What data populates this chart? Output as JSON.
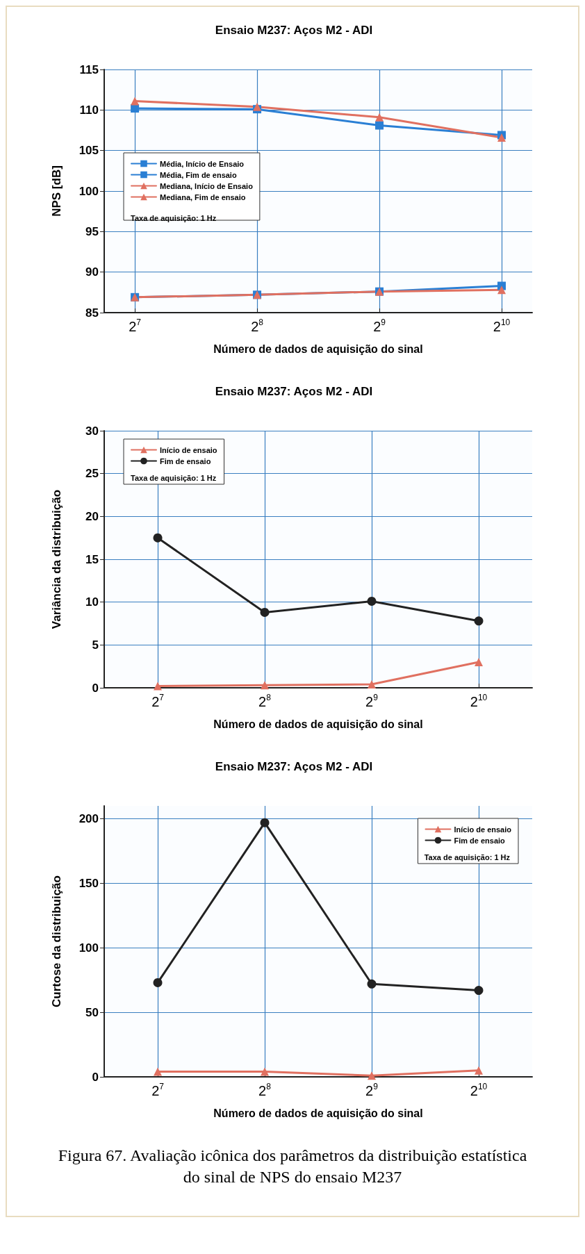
{
  "chart_data": [
    {
      "type": "line",
      "title": "Ensaio M237: Aços M2 - ADI",
      "xlabel": "Número de dados de aquisição do sinal",
      "ylabel": "NPS [dB]",
      "log": "x",
      "x": [
        128,
        256,
        512,
        1024
      ],
      "xlim": [
        107.6,
        1217.7
      ],
      "xticks": [
        {
          "value": 128,
          "label": "2$^{7}$"
        },
        {
          "value": 256,
          "label": "2$^{8}$"
        },
        {
          "value": 512,
          "label": "2$^{9}$"
        },
        {
          "value": 1024,
          "label": "2$^{10}$"
        }
      ],
      "ylim": [
        85,
        115
      ],
      "yticks": [
        85,
        90,
        95,
        100,
        105,
        110,
        115
      ],
      "grid": true,
      "legend": "left",
      "annotations": [
        "Taxa de aquisição: 1 Hz"
      ],
      "series": [
        {
          "name": "Média, Início de Ensaio",
          "color": "#2a7fd4",
          "marker": "square",
          "values": [
            86.9,
            87.2,
            87.6,
            88.3
          ]
        },
        {
          "name": "Média, Fim de ensaio",
          "color": "#2a7fd4",
          "marker": "square",
          "values": [
            110.2,
            110.1,
            108.1,
            106.9
          ]
        },
        {
          "name": "Mediana, Início de Ensaio",
          "color": "#e07060",
          "marker": "triangle",
          "values": [
            86.9,
            87.2,
            87.6,
            87.8
          ]
        },
        {
          "name": "Mediana, Fim de ensaio",
          "color": "#e07060",
          "marker": "triangle",
          "values": [
            111.1,
            110.4,
            109.1,
            106.6
          ]
        }
      ]
    },
    {
      "type": "line",
      "title": "Ensaio M237: Aços M2 - ADI",
      "xlabel": "Número de dados de aquisição do sinal",
      "ylabel": "Variância da distribuição",
      "log": "x",
      "x": [
        128,
        256,
        512,
        1024
      ],
      "xlim": [
        90.5,
        1448.2
      ],
      "xticks": [
        {
          "value": 128,
          "label": "2$^{7}$"
        },
        {
          "value": 256,
          "label": "2$^{8}$"
        },
        {
          "value": 512,
          "label": "2$^{9}$"
        },
        {
          "value": 1024,
          "label": "2$^{10}$"
        }
      ],
      "ylim": [
        0,
        30
      ],
      "yticks": [
        0,
        5,
        10,
        15,
        20,
        25,
        30
      ],
      "grid": true,
      "legend": "top left",
      "annotations": [
        "Taxa de aquisição: 1 Hz"
      ],
      "series": [
        {
          "name": "Início de ensaio",
          "color": "#e07060",
          "marker": "triangle",
          "values": [
            0.2,
            0.3,
            0.4,
            3.0
          ]
        },
        {
          "name": "Fim de ensaio",
          "color": "#222222",
          "marker": "circle",
          "values": [
            17.5,
            8.8,
            10.1,
            7.8
          ]
        }
      ]
    },
    {
      "type": "line",
      "title": "Ensaio M237: Aços M2 - ADI",
      "xlabel": "Número de dados de aquisição do sinal",
      "ylabel": "Curtose da distribuição",
      "log": "x",
      "x": [
        128,
        256,
        512,
        1024
      ],
      "xlim": [
        90.5,
        1448.2
      ],
      "xticks": [
        {
          "value": 128,
          "label": "2$^{7}$"
        },
        {
          "value": 256,
          "label": "2$^{8}$"
        },
        {
          "value": 512,
          "label": "2$^{9}$"
        },
        {
          "value": 1024,
          "label": "2$^{10}$"
        }
      ],
      "ylim": [
        0,
        210
      ],
      "yticks": [
        0,
        50,
        100,
        150,
        200
      ],
      "grid": true,
      "legend": "top right",
      "annotations": [
        "Taxa de aquisição: 1 Hz",
        "Figura 67. Avaliação icônica dos parâmetros da distribuição estatística do sinal de NPS do ensaio M237"
      ],
      "series": [
        {
          "name": "Início de ensaio",
          "color": "#e07060",
          "marker": "triangle",
          "values": [
            4,
            4,
            1,
            5
          ]
        },
        {
          "name": "Fim de ensaio",
          "color": "#222222",
          "marker": "circle",
          "values": [
            73,
            197,
            72,
            67
          ]
        }
      ]
    }
  ]
}
